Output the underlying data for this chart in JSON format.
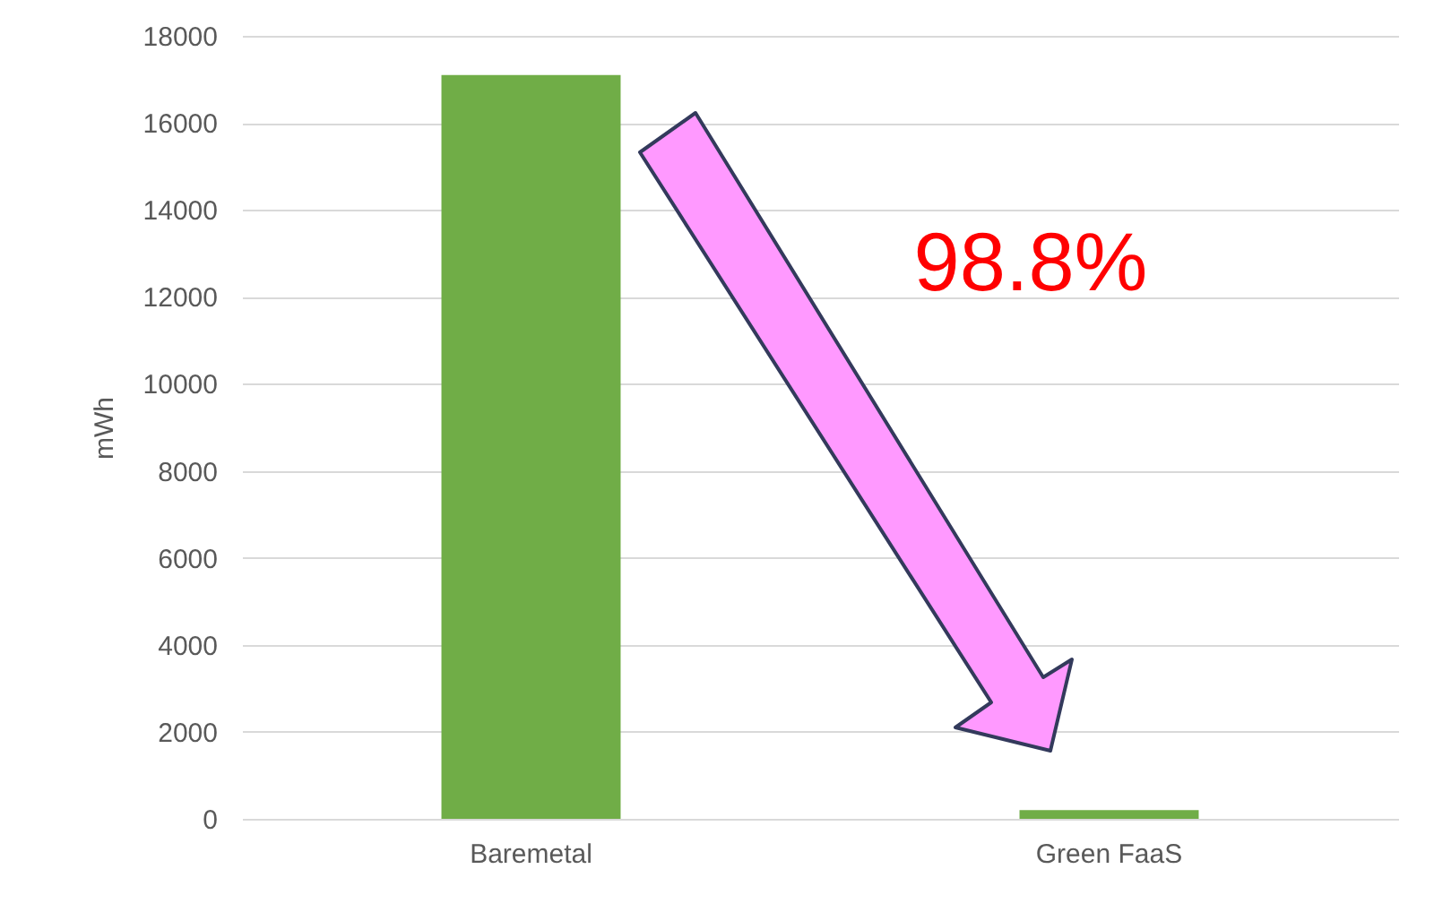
{
  "chart_data": {
    "type": "bar",
    "categories": [
      "Baremetal",
      "Green FaaS"
    ],
    "values": [
      17100,
      200
    ],
    "color": "#70ad47",
    "ylabel": "mWh",
    "ylim": [
      0,
      18000
    ],
    "yticks": [
      0,
      2000,
      4000,
      6000,
      8000,
      10000,
      12000,
      14000,
      16000,
      18000
    ],
    "grid": "y",
    "annotations": [
      "98.8%"
    ]
  }
}
